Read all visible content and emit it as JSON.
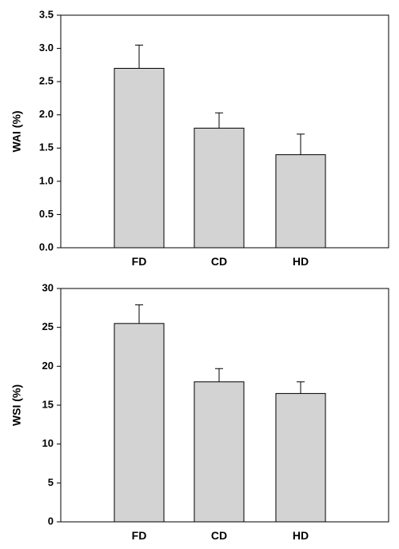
{
  "chart_data": [
    {
      "type": "bar",
      "categories": [
        "FD",
        "CD",
        "HD"
      ],
      "values": [
        2.7,
        1.8,
        1.4
      ],
      "error": [
        0.35,
        0.23,
        0.31
      ],
      "xlabel": "",
      "ylabel": "WAI (%)",
      "ylim": [
        0,
        3.5
      ],
      "yticks": [
        0.0,
        0.5,
        1.0,
        1.5,
        2.0,
        2.5,
        3.0,
        3.5
      ],
      "ytick_labels": [
        "0.0",
        "0.5",
        "1.0",
        "1.5",
        "2.0",
        "2.5",
        "3.0",
        "3.5"
      ],
      "grid": false,
      "bar_color": "#d3d3d3"
    },
    {
      "type": "bar",
      "categories": [
        "FD",
        "CD",
        "HD"
      ],
      "values": [
        25.5,
        18.0,
        16.5
      ],
      "error": [
        2.4,
        1.7,
        1.5
      ],
      "xlabel": "",
      "ylabel": "WSI (%)",
      "ylim": [
        0,
        30
      ],
      "yticks": [
        0,
        5,
        10,
        15,
        20,
        25,
        30
      ],
      "ytick_labels": [
        "0",
        "5",
        "10",
        "15",
        "20",
        "25",
        "30"
      ],
      "grid": false,
      "bar_color": "#d3d3d3"
    }
  ]
}
